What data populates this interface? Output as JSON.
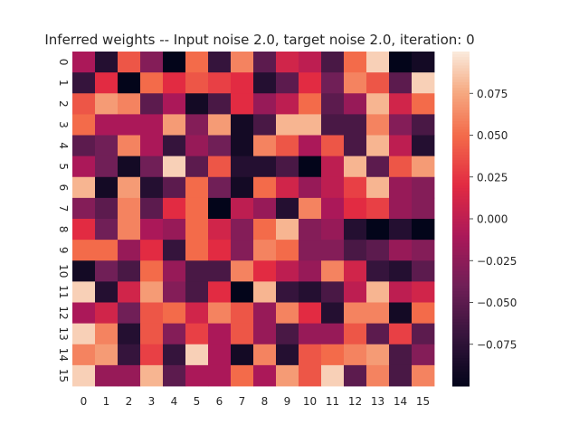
{
  "chart_data": {
    "type": "heatmap",
    "title": "Inferred weights -- Input noise 2.0, target noise 2.0, iteration: 0",
    "xlabel": "",
    "ylabel": "",
    "x_tick_labels": [
      "0",
      "1",
      "2",
      "3",
      "4",
      "5",
      "6",
      "7",
      "8",
      "9",
      "10",
      "11",
      "12",
      "13",
      "14",
      "15"
    ],
    "y_tick_labels": [
      "0",
      "1",
      "2",
      "3",
      "4",
      "5",
      "6",
      "7",
      "8",
      "9",
      "10",
      "11",
      "12",
      "13",
      "14",
      "15"
    ],
    "colormap": "rocket",
    "value_range": [
      -0.1,
      0.1
    ],
    "colorbar_ticks": [
      0.075,
      0.05,
      0.025,
      0.0,
      -0.025,
      -0.05,
      -0.075
    ],
    "colorbar_tick_labels": [
      "0.075",
      "0.050",
      "0.025",
      "0.000",
      "−0.025",
      "−0.050",
      "−0.075"
    ],
    "values": [
      [
        -0.01,
        -0.08,
        0.04,
        -0.03,
        -0.1,
        0.05,
        -0.07,
        0.06,
        -0.05,
        0.01,
        0.0,
        -0.06,
        0.05,
        0.09,
        -0.1,
        -0.09
      ],
      [
        -0.07,
        0.02,
        -0.1,
        0.05,
        0.02,
        0.04,
        0.03,
        0.02,
        -0.08,
        -0.05,
        0.02,
        -0.04,
        0.06,
        0.04,
        -0.05,
        0.09
      ],
      [
        0.04,
        0.07,
        0.06,
        -0.05,
        -0.01,
        -0.09,
        -0.06,
        0.02,
        -0.02,
        0.0,
        0.05,
        -0.05,
        -0.02,
        0.08,
        0.01,
        0.05
      ],
      [
        0.05,
        -0.01,
        -0.01,
        -0.01,
        0.07,
        -0.03,
        0.07,
        -0.09,
        -0.06,
        0.08,
        0.08,
        -0.06,
        -0.06,
        0.06,
        -0.03,
        -0.06
      ],
      [
        -0.05,
        -0.04,
        0.06,
        -0.01,
        -0.07,
        -0.02,
        -0.04,
        -0.09,
        0.06,
        0.04,
        -0.01,
        0.04,
        -0.06,
        0.08,
        0.0,
        -0.08
      ],
      [
        -0.01,
        -0.04,
        -0.09,
        -0.04,
        0.09,
        -0.05,
        0.04,
        -0.08,
        -0.08,
        -0.06,
        -0.1,
        0.0,
        0.08,
        -0.05,
        0.04,
        0.07
      ],
      [
        0.08,
        -0.09,
        0.07,
        -0.08,
        -0.05,
        0.05,
        -0.04,
        -0.09,
        0.05,
        0.01,
        -0.02,
        0.0,
        0.03,
        0.08,
        -0.02,
        -0.03
      ],
      [
        -0.03,
        -0.05,
        0.06,
        -0.05,
        0.02,
        0.05,
        -0.1,
        0.0,
        -0.02,
        -0.08,
        0.06,
        -0.01,
        0.02,
        0.03,
        -0.02,
        -0.03
      ],
      [
        0.02,
        -0.04,
        0.06,
        -0.01,
        -0.02,
        0.05,
        0.01,
        -0.03,
        0.05,
        0.08,
        -0.03,
        -0.02,
        -0.08,
        -0.1,
        -0.08,
        -0.1
      ],
      [
        0.05,
        0.05,
        -0.02,
        0.02,
        -0.07,
        0.05,
        0.02,
        -0.03,
        0.06,
        0.05,
        -0.03,
        -0.03,
        -0.06,
        -0.05,
        -0.02,
        -0.03
      ],
      [
        -0.09,
        -0.04,
        -0.06,
        0.05,
        -0.02,
        -0.06,
        -0.06,
        0.06,
        0.02,
        0.0,
        -0.02,
        0.06,
        0.01,
        -0.07,
        -0.08,
        -0.05
      ],
      [
        0.09,
        -0.08,
        0.01,
        0.07,
        -0.03,
        -0.06,
        0.02,
        -0.1,
        0.08,
        -0.07,
        -0.08,
        -0.06,
        0.0,
        0.08,
        0.0,
        0.01
      ],
      [
        -0.01,
        0.01,
        -0.04,
        0.04,
        0.05,
        0.01,
        0.06,
        0.04,
        -0.02,
        0.06,
        0.02,
        -0.08,
        0.06,
        0.06,
        -0.09,
        0.05
      ],
      [
        0.09,
        0.06,
        -0.08,
        0.04,
        -0.03,
        0.03,
        -0.01,
        0.04,
        -0.02,
        -0.06,
        -0.02,
        -0.02,
        0.04,
        -0.05,
        0.03,
        -0.05
      ],
      [
        0.06,
        0.07,
        -0.07,
        0.03,
        -0.07,
        0.09,
        -0.01,
        -0.09,
        0.06,
        -0.08,
        0.04,
        0.05,
        0.06,
        0.07,
        -0.06,
        -0.03
      ],
      [
        0.09,
        -0.02,
        -0.02,
        0.08,
        -0.05,
        -0.01,
        -0.01,
        0.05,
        -0.01,
        0.07,
        0.04,
        0.09,
        -0.05,
        0.06,
        -0.06,
        0.06
      ]
    ]
  }
}
